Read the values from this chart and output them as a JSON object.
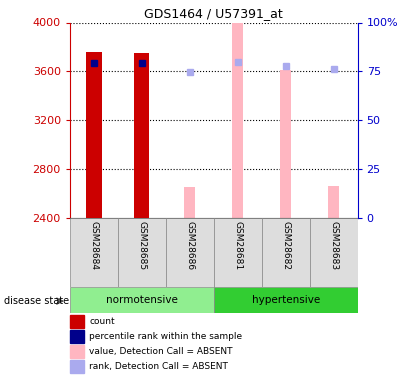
{
  "title": "GDS1464 / U57391_at",
  "samples": [
    "GSM28684",
    "GSM28685",
    "GSM28686",
    "GSM28681",
    "GSM28682",
    "GSM28683"
  ],
  "ylim": [
    2400,
    4000
  ],
  "y2lim": [
    0,
    100
  ],
  "yticks": [
    2400,
    2800,
    3200,
    3600,
    4000
  ],
  "y2ticks": [
    0,
    25,
    50,
    75,
    100
  ],
  "y2ticklabels": [
    "0",
    "25",
    "50",
    "75",
    "100%"
  ],
  "count_values": [
    3760,
    3750,
    null,
    null,
    null,
    null
  ],
  "count_color": "#cc0000",
  "absent_value_values": [
    null,
    null,
    2650,
    4000,
    3610,
    2655
  ],
  "absent_value_color": "#FFB6C1",
  "percentile_rank_values": [
    3665,
    3668,
    null,
    null,
    null,
    null
  ],
  "percentile_rank_color": "#00008B",
  "absent_rank_values": [
    null,
    null,
    3590,
    3678,
    3645,
    3615
  ],
  "absent_rank_color": "#AAAAEE",
  "bar_width": 0.32,
  "absent_bar_width": 0.22,
  "legend_items": [
    {
      "label": "count",
      "color": "#cc0000"
    },
    {
      "label": "percentile rank within the sample",
      "color": "#00008B"
    },
    {
      "label": "value, Detection Call = ABSENT",
      "color": "#FFB6C1"
    },
    {
      "label": "rank, Detection Call = ABSENT",
      "color": "#AAAAEE"
    }
  ],
  "disease_state_label": "disease state",
  "left_axis_color": "#cc0000",
  "right_axis_color": "#0000cc",
  "norm_color": "#90EE90",
  "hyp_color": "#32CD32",
  "sample_bg_color": "#dddddd"
}
